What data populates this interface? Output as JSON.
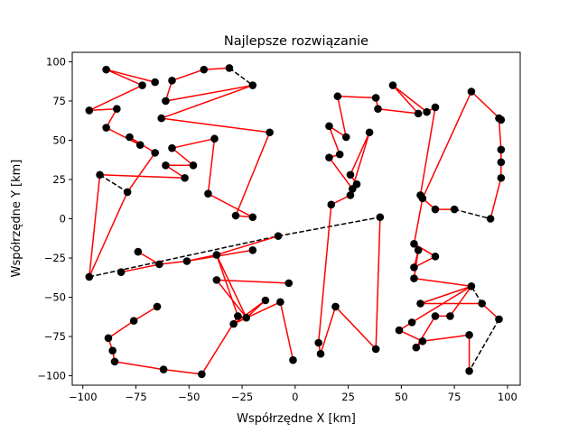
{
  "chart_data": {
    "type": "scatter",
    "title": "Najlepsze rozwiązanie",
    "xlabel": "Współrzędne X [km]",
    "ylabel": "Współrzędne Y [km]",
    "xlim": [
      -105,
      106
    ],
    "ylim": [
      -106,
      106
    ],
    "xticks": [
      -100,
      -75,
      -50,
      -25,
      0,
      25,
      50,
      75,
      100
    ],
    "yticks": [
      -100,
      -75,
      -50,
      -25,
      0,
      25,
      50,
      75,
      100
    ],
    "grid": false,
    "colors": {
      "route": "#ff0000",
      "return": "#000000",
      "points": "#000000",
      "frame": "#000000"
    },
    "series": [
      {
        "name": "cities",
        "style": "points",
        "points": [
          [
            -89,
            95
          ],
          [
            -72,
            85
          ],
          [
            -66,
            87
          ],
          [
            -58,
            88
          ],
          [
            -43,
            95
          ],
          [
            -31,
            96
          ],
          [
            -20,
            85
          ],
          [
            -61,
            75
          ],
          [
            -63,
            64
          ],
          [
            -12,
            55
          ],
          [
            -38,
            51
          ],
          [
            -84,
            70
          ],
          [
            -89,
            58
          ],
          [
            -97,
            69
          ],
          [
            -78,
            52
          ],
          [
            -73,
            47
          ],
          [
            -66,
            42
          ],
          [
            -58,
            45
          ],
          [
            -48,
            34
          ],
          [
            -61,
            34
          ],
          [
            -52,
            26
          ],
          [
            -41,
            16
          ],
          [
            -28,
            2
          ],
          [
            -20,
            1
          ],
          [
            -92,
            28
          ],
          [
            -79,
            17
          ],
          [
            -97,
            -37
          ],
          [
            -82,
            -34
          ],
          [
            -64,
            -29
          ],
          [
            -51,
            -27
          ],
          [
            -37,
            -23
          ],
          [
            -20,
            -20
          ],
          [
            -8,
            -11
          ],
          [
            -74,
            -21
          ],
          [
            -37,
            -39
          ],
          [
            -3,
            -41
          ],
          [
            -27,
            -62
          ],
          [
            -23,
            -63
          ],
          [
            -14,
            -52
          ],
          [
            -7,
            -53
          ],
          [
            -29,
            -67
          ],
          [
            -65,
            -56
          ],
          [
            -76,
            -65
          ],
          [
            -88,
            -76
          ],
          [
            -86,
            -84
          ],
          [
            -85,
            -91
          ],
          [
            -62,
            -96
          ],
          [
            -44,
            -99
          ],
          [
            -1,
            -90
          ],
          [
            11,
            -79
          ],
          [
            12,
            -86
          ],
          [
            19,
            -56
          ],
          [
            38,
            -83
          ],
          [
            17,
            9
          ],
          [
            40,
            1
          ],
          [
            16,
            39
          ],
          [
            16,
            59
          ],
          [
            21,
            41
          ],
          [
            24,
            52
          ],
          [
            26,
            28
          ],
          [
            27,
            19
          ],
          [
            26,
            15
          ],
          [
            29,
            22
          ],
          [
            35,
            55
          ],
          [
            20,
            78
          ],
          [
            38,
            77
          ],
          [
            39,
            70
          ],
          [
            46,
            85
          ],
          [
            58,
            67
          ],
          [
            62,
            68
          ],
          [
            66,
            71
          ],
          [
            59,
            15
          ],
          [
            60,
            13
          ],
          [
            66,
            6
          ],
          [
            75,
            6
          ],
          [
            92,
            0
          ],
          [
            83,
            81
          ],
          [
            96,
            64
          ],
          [
            97,
            63
          ],
          [
            97,
            44
          ],
          [
            97,
            36
          ],
          [
            97,
            26
          ],
          [
            56,
            -16
          ],
          [
            58,
            -20
          ],
          [
            56,
            -31
          ],
          [
            56,
            -38
          ],
          [
            66,
            -24
          ],
          [
            59,
            -54
          ],
          [
            66,
            -62
          ],
          [
            73,
            -62
          ],
          [
            88,
            -54
          ],
          [
            96,
            -64
          ],
          [
            82,
            -74
          ],
          [
            82,
            -97
          ],
          [
            60,
            -78
          ],
          [
            57,
            -82
          ],
          [
            55,
            -66
          ],
          [
            49,
            -71
          ],
          [
            83,
            -43
          ]
        ]
      },
      {
        "name": "route",
        "style": "solid-red",
        "path": [
          [
            -31,
            96
          ],
          [
            -43,
            95
          ],
          [
            -58,
            88
          ],
          [
            -61,
            75
          ],
          [
            -20,
            85
          ],
          [
            -63,
            64
          ],
          [
            -12,
            55
          ],
          [
            -28,
            2
          ],
          [
            -20,
            1
          ],
          [
            -41,
            16
          ],
          [
            -38,
            51
          ],
          [
            -58,
            45
          ],
          [
            -48,
            34
          ],
          [
            -61,
            34
          ],
          [
            -52,
            26
          ],
          [
            -92,
            28
          ],
          [
            -97,
            -37
          ],
          [
            -79,
            17
          ],
          [
            -66,
            42
          ],
          [
            -78,
            52
          ],
          [
            -73,
            47
          ],
          [
            -89,
            58
          ],
          [
            -84,
            70
          ],
          [
            -97,
            69
          ],
          [
            -72,
            85
          ],
          [
            -89,
            95
          ],
          [
            -66,
            87
          ]
        ]
      },
      {
        "name": "route-2",
        "style": "solid-red",
        "path": [
          [
            -82,
            -34
          ],
          [
            -64,
            -29
          ],
          [
            -74,
            -21
          ],
          [
            -64,
            -29
          ],
          [
            -51,
            -27
          ],
          [
            -20,
            -20
          ],
          [
            -51,
            -27
          ],
          [
            -37,
            -23
          ],
          [
            -8,
            -11
          ]
        ]
      },
      {
        "name": "route-3",
        "style": "solid-red",
        "path": [
          [
            40,
            1
          ],
          [
            38,
            -83
          ],
          [
            19,
            -56
          ],
          [
            12,
            -86
          ],
          [
            11,
            -79
          ],
          [
            17,
            9
          ],
          [
            26,
            15
          ],
          [
            35,
            55
          ],
          [
            26,
            28
          ],
          [
            29,
            22
          ],
          [
            27,
            19
          ],
          [
            16,
            39
          ],
          [
            21,
            41
          ],
          [
            16,
            59
          ],
          [
            24,
            52
          ],
          [
            20,
            78
          ],
          [
            38,
            77
          ],
          [
            39,
            70
          ],
          [
            58,
            67
          ],
          [
            46,
            85
          ],
          [
            62,
            68
          ],
          [
            66,
            71
          ],
          [
            59,
            15
          ],
          [
            60,
            13
          ],
          [
            66,
            6
          ],
          [
            75,
            6
          ]
        ]
      },
      {
        "name": "route-4",
        "style": "solid-red",
        "path": [
          [
            92,
            0
          ],
          [
            97,
            26
          ],
          [
            97,
            36
          ],
          [
            97,
            44
          ],
          [
            96,
            64
          ],
          [
            97,
            63
          ],
          [
            83,
            81
          ],
          [
            60,
            13
          ],
          [
            56,
            -16
          ],
          [
            66,
            -24
          ],
          [
            56,
            -31
          ],
          [
            58,
            -20
          ],
          [
            56,
            -38
          ],
          [
            83,
            -43
          ],
          [
            59,
            -54
          ],
          [
            88,
            -54
          ],
          [
            96,
            -64
          ]
        ]
      },
      {
        "name": "route-5",
        "style": "solid-red",
        "path": [
          [
            82,
            -97
          ],
          [
            82,
            -74
          ],
          [
            60,
            -78
          ],
          [
            57,
            -82
          ],
          [
            66,
            -62
          ],
          [
            73,
            -62
          ],
          [
            83,
            -43
          ],
          [
            55,
            -66
          ],
          [
            49,
            -71
          ],
          [
            60,
            -78
          ]
        ]
      },
      {
        "name": "route-6",
        "style": "solid-red",
        "path": [
          [
            -3,
            -41
          ],
          [
            -37,
            -39
          ],
          [
            -23,
            -63
          ],
          [
            -27,
            -62
          ],
          [
            -37,
            -23
          ],
          [
            -23,
            -63
          ],
          [
            -14,
            -52
          ],
          [
            -29,
            -67
          ],
          [
            -7,
            -53
          ],
          [
            -1,
            -90
          ]
        ]
      },
      {
        "name": "route-7",
        "style": "solid-red",
        "path": [
          [
            -65,
            -56
          ],
          [
            -76,
            -65
          ],
          [
            -88,
            -76
          ],
          [
            -86,
            -84
          ],
          [
            -85,
            -91
          ],
          [
            -62,
            -96
          ],
          [
            -44,
            -99
          ],
          [
            -27,
            -62
          ]
        ]
      },
      {
        "name": "return-legs",
        "style": "dashed-black",
        "segments": [
          [
            [
              -31,
              96
            ],
            [
              -20,
              85
            ]
          ],
          [
            [
              -92,
              28
            ],
            [
              -79,
              17
            ]
          ],
          [
            [
              -97,
              -37
            ],
            [
              -8,
              -11
            ]
          ],
          [
            [
              -8,
              -11
            ],
            [
              40,
              1
            ]
          ],
          [
            [
              75,
              6
            ],
            [
              92,
              0
            ]
          ],
          [
            [
              96,
              -64
            ],
            [
              82,
              -97
            ]
          ],
          [
            [
              88,
              -54
            ],
            [
              83,
              -43
            ]
          ]
        ]
      }
    ]
  }
}
